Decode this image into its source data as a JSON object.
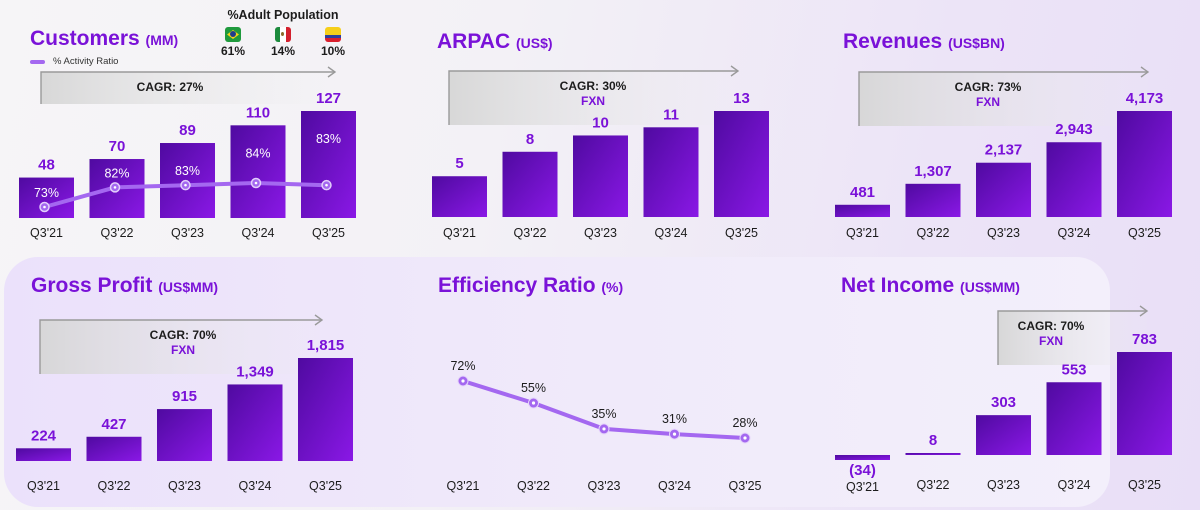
{
  "colors": {
    "accent": "#7a12d8",
    "bar_dark": "#4f0aa0",
    "bar_light": "#8a18e6",
    "line": "#a468f0",
    "text": "#1c1c1c"
  },
  "adult_population": {
    "title": "%Adult Population",
    "countries": [
      {
        "flag": "brazil-flag-icon",
        "value": "61%"
      },
      {
        "flag": "mexico-flag-icon",
        "value": "14%"
      },
      {
        "flag": "colombia-flag-icon",
        "value": "10%"
      }
    ]
  },
  "chart_data": [
    {
      "id": "customers",
      "type": "bar",
      "title": "Customers",
      "unit": "(MM)",
      "categories": [
        "Q3'21",
        "Q3'22",
        "Q3'23",
        "Q3'24",
        "Q3'25"
      ],
      "values": [
        48,
        70,
        89,
        110,
        127
      ],
      "value_labels": [
        "48",
        "70",
        "89",
        "110",
        "127"
      ],
      "cagr": "CAGR: 27%",
      "cagr_note": "",
      "legend": "% Activity Ratio",
      "overlay_line": {
        "name": "% Activity Ratio",
        "values": [
          73,
          82,
          83,
          84,
          83
        ],
        "labels": [
          "73%",
          "82%",
          "83%",
          "84%",
          "83%"
        ]
      }
    },
    {
      "id": "arpac",
      "type": "bar",
      "title": "ARPAC",
      "unit": "(US$)",
      "categories": [
        "Q3'21",
        "Q3'22",
        "Q3'23",
        "Q3'24",
        "Q3'25"
      ],
      "values": [
        5,
        8,
        10,
        11,
        13
      ],
      "value_labels": [
        "5",
        "8",
        "10",
        "11",
        "13"
      ],
      "cagr": "CAGR: 30%",
      "cagr_note": "FXN"
    },
    {
      "id": "revenues",
      "type": "bar",
      "title": "Revenues",
      "unit": "(US$BN)",
      "categories": [
        "Q3'21",
        "Q3'22",
        "Q3'23",
        "Q3'24",
        "Q3'25"
      ],
      "values": [
        481,
        1307,
        2137,
        2943,
        4173
      ],
      "value_labels": [
        "481",
        "1,307",
        "2,137",
        "2,943",
        "4,173"
      ],
      "cagr": "CAGR: 73%",
      "cagr_note": "FXN"
    },
    {
      "id": "gross-profit",
      "type": "bar",
      "title": "Gross Profit",
      "unit": "(US$MM)",
      "categories": [
        "Q3'21",
        "Q3'22",
        "Q3'23",
        "Q3'24",
        "Q3'25"
      ],
      "values": [
        224,
        427,
        915,
        1349,
        1815
      ],
      "value_labels": [
        "224",
        "427",
        "915",
        "1,349",
        "1,815"
      ],
      "cagr": "CAGR: 70%",
      "cagr_note": "FXN"
    },
    {
      "id": "efficiency-ratio",
      "type": "line",
      "title": "Efficiency Ratio",
      "unit": "(%)",
      "categories": [
        "Q3'21",
        "Q3'22",
        "Q3'23",
        "Q3'24",
        "Q3'25"
      ],
      "values": [
        72,
        55,
        35,
        31,
        28
      ],
      "value_labels": [
        "72%",
        "55%",
        "35%",
        "31%",
        "28%"
      ]
    },
    {
      "id": "net-income",
      "type": "bar",
      "title": "Net Income",
      "unit": "(US$MM)",
      "categories": [
        "Q3'21",
        "Q3'22",
        "Q3'23",
        "Q3'24",
        "Q3'25"
      ],
      "values": [
        -34,
        8,
        303,
        553,
        783
      ],
      "value_labels": [
        "(34)",
        "8",
        "303",
        "553",
        "783"
      ],
      "cagr": "CAGR: 70%",
      "cagr_note": "FXN"
    }
  ]
}
